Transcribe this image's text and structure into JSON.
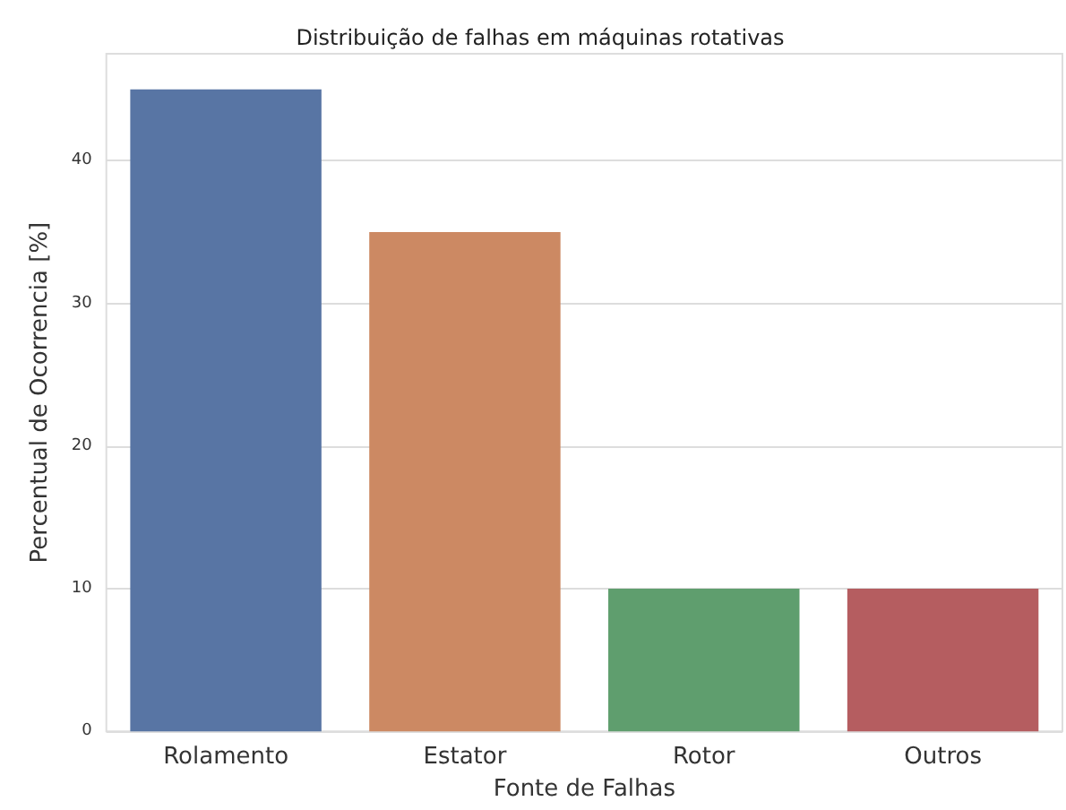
{
  "chart_data": {
    "type": "bar",
    "title": "Distribuição de falhas em máquinas rotativas",
    "xlabel": "Fonte de Falhas",
    "ylabel": "Percentual de Ocorrencia [%]",
    "categories": [
      "Rolamento",
      "Estator",
      "Rotor",
      "Outros"
    ],
    "values": [
      45,
      35,
      10,
      10
    ],
    "colors": [
      "#5875a4",
      "#cc8963",
      "#5f9e6e",
      "#b55d60"
    ],
    "ylim": [
      0,
      47.5
    ],
    "yticks": [
      0,
      10,
      20,
      30,
      40
    ],
    "grid": "y"
  }
}
